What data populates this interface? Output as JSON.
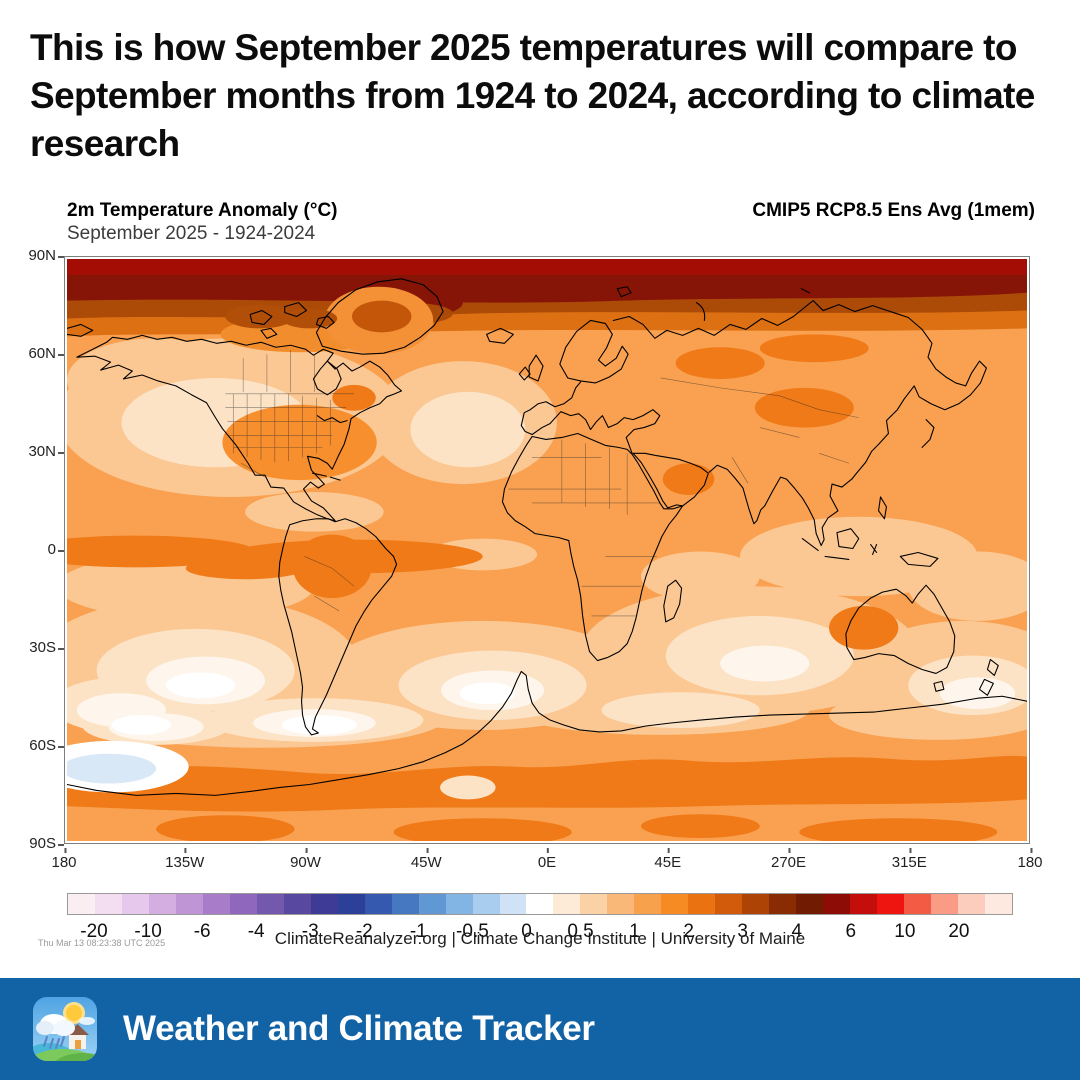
{
  "headline": "This is how September 2025 temperatures will compare to September months from 1924 to 2024, according to climate research",
  "map": {
    "title": "2m Temperature Anomaly (°C)",
    "subtitle": "September 2025 - 1924-2024",
    "model_label": "CMIP5 RCP8.5 Ens Avg (1mem)",
    "lat_labels": [
      "90N",
      "60N",
      "30N",
      "0",
      "30S",
      "60S",
      "90S"
    ],
    "lon_labels": [
      "180",
      "135W",
      "90W",
      "45W",
      "0E",
      "45E",
      "270E",
      "315E",
      "180"
    ],
    "timestamp": "Thu Mar 13 08:23:38 UTC 2025",
    "attribution": "ClimateReanalyzer.org | Climate Change Institute | University of Maine"
  },
  "colorbar": {
    "tick_labels": [
      "-20",
      "-10",
      "-6",
      "-4",
      "-3",
      "-2",
      "-1",
      "-0.5",
      "0",
      "0.5",
      "1",
      "2",
      "3",
      "4",
      "6",
      "10",
      "20"
    ],
    "cell_colors": [
      "#FBEEF2",
      "#F3DDF1",
      "#E5C8EB",
      "#D4AEE0",
      "#BF95D5",
      "#A87CC9",
      "#8F68BD",
      "#7358AE",
      "#58489F",
      "#3D3B95",
      "#2D4099",
      "#3559AE",
      "#4678C1",
      "#6098D3",
      "#82B5E3",
      "#A8CDEE",
      "#D0E3F6",
      "#FFFFFF",
      "#FDEBD7",
      "#FBD2A6",
      "#F9B878",
      "#F8A14C",
      "#F68B24",
      "#EA7211",
      "#D25A0B",
      "#AD4406",
      "#892C04",
      "#701B02",
      "#8E0C06",
      "#C30E0C",
      "#EE1511",
      "#F45B45",
      "#F99B85",
      "#FCCDBD",
      "#FEE9E0"
    ]
  },
  "footer": {
    "app_name": "Weather and Climate Tracker",
    "bar_color": "#1263A5"
  },
  "chart_data": {
    "type": "heatmap",
    "title": "2m Temperature Anomaly (°C)",
    "subtitle": "September 2025 - 1924-2024",
    "model": "CMIP5 RCP8.5 Ens Avg (1mem)",
    "projection": "equirectangular world map",
    "x_axis": {
      "label": "longitude",
      "ticks": [
        "180",
        "135W",
        "90W",
        "45W",
        "0E",
        "45E",
        "270E",
        "315E",
        "180"
      ]
    },
    "y_axis": {
      "label": "latitude",
      "ticks": [
        "90N",
        "60N",
        "30N",
        "0",
        "30S",
        "60S",
        "90S"
      ]
    },
    "colorbar_ticks_degC": [
      -20,
      -10,
      -6,
      -4,
      -3,
      -2,
      -1,
      -0.5,
      0,
      0.5,
      1,
      2,
      3,
      4,
      6,
      10,
      20
    ],
    "units": "°C anomaly",
    "legend_position": "bottom",
    "notable_values": [
      {
        "region": "Arctic 80-90N band",
        "anomaly_c": "+6 to +10"
      },
      {
        "region": "75-80N band",
        "anomaly_c": "+3 to +6"
      },
      {
        "region": "Most continental land (N. America, Eurasia, Africa)",
        "anomaly_c": "+1 to +2"
      },
      {
        "region": "Siberia, Mongolia, Greenland interior, Arabia, interior Brazil, central Australia",
        "anomaly_c": "+2 to +3"
      },
      {
        "region": "N. Pacific and N. Atlantic mid-ocean patches",
        "anomaly_c": "+0.5 to +1 with 0 to +0.5 cores"
      },
      {
        "region": "Southern mid-latitude oceans (30S-55S)",
        "anomaly_c": "0 to +1"
      },
      {
        "region": "Southern Ocean band ~60-65S and Antarctic interior patches",
        "anomaly_c": "+2 to +3"
      },
      {
        "region": "Small pocket near 70S 160W",
        "anomaly_c": "-0.5 to 0"
      }
    ]
  }
}
